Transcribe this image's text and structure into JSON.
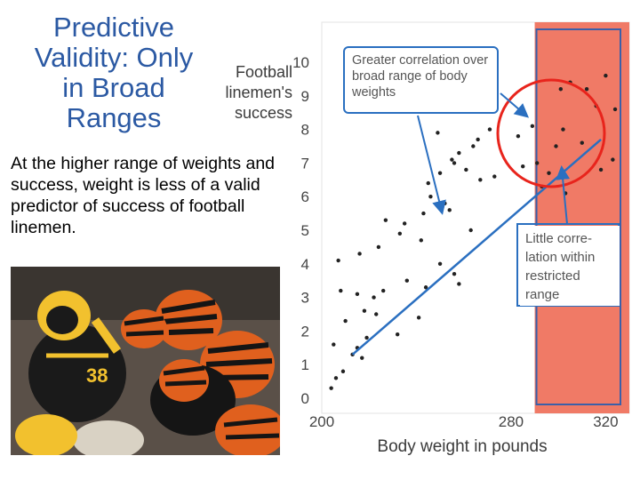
{
  "slide": {
    "title_lines": [
      "Predictive",
      "Validity: Only",
      "in Broad",
      "Ranges"
    ],
    "body": "At the higher range of weights and success, weight is less of a valid predictor of success of football linemen."
  },
  "photo": {
    "jersey_number": "38",
    "colors": {
      "steelers_yellow": "#f2c12e",
      "steelers_black": "#1a1a1a",
      "bengals_orange": "#e0601e",
      "bengals_black": "#151515"
    }
  },
  "chart_data": {
    "type": "scatter",
    "ylabel_lines": [
      "Football",
      "linemen's",
      "success"
    ],
    "xlabel": "Body weight in pounds",
    "xlim": [
      200,
      330
    ],
    "ylim": [
      0,
      10.5
    ],
    "x_ticks": [
      200,
      280,
      320
    ],
    "y_ticks": [
      0,
      1,
      2,
      3,
      4,
      5,
      6,
      7,
      8,
      9,
      10
    ],
    "grid": false,
    "highlight_band": {
      "x": [
        290,
        330
      ],
      "color": "#f07a66"
    },
    "trend_line": {
      "from": [
        213,
        1.3
      ],
      "to": [
        318,
        7.7
      ],
      "color": "#2a6fc0"
    },
    "points": [
      [
        204,
        0.3
      ],
      [
        206,
        0.6
      ],
      [
        209,
        0.8
      ],
      [
        213,
        1.3
      ],
      [
        205,
        1.6
      ],
      [
        215,
        1.5
      ],
      [
        217,
        1.2
      ],
      [
        219,
        1.8
      ],
      [
        210,
        2.3
      ],
      [
        218,
        2.6
      ],
      [
        223,
        2.5
      ],
      [
        232,
        1.9
      ],
      [
        241,
        2.4
      ],
      [
        208,
        3.2
      ],
      [
        215,
        3.1
      ],
      [
        222,
        3.0
      ],
      [
        226,
        3.2
      ],
      [
        236,
        3.5
      ],
      [
        244,
        3.3
      ],
      [
        258,
        3.4
      ],
      [
        207,
        4.1
      ],
      [
        216,
        4.3
      ],
      [
        224,
        4.5
      ],
      [
        233,
        4.9
      ],
      [
        242,
        4.7
      ],
      [
        250,
        4.0
      ],
      [
        254,
        5.6
      ],
      [
        227,
        5.3
      ],
      [
        235,
        5.2
      ],
      [
        243,
        5.5
      ],
      [
        246,
        6.0
      ],
      [
        252,
        5.8
      ],
      [
        263,
        5.0
      ],
      [
        256,
        3.7
      ],
      [
        245,
        6.4
      ],
      [
        250,
        6.7
      ],
      [
        255,
        7.1
      ],
      [
        258,
        7.3
      ],
      [
        261,
        6.8
      ],
      [
        264,
        7.5
      ],
      [
        267,
        6.5
      ],
      [
        249,
        7.9
      ],
      [
        256,
        7.0
      ],
      [
        266,
        7.7
      ],
      [
        271,
        8.0
      ],
      [
        273,
        6.6
      ],
      [
        283,
        7.8
      ],
      [
        289,
        8.1
      ],
      [
        293,
        6.3
      ],
      [
        296,
        6.7
      ],
      [
        302,
        8.0
      ],
      [
        305,
        9.4
      ],
      [
        310,
        7.6
      ],
      [
        312,
        9.2
      ],
      [
        316,
        8.7
      ],
      [
        320,
        9.6
      ],
      [
        323,
        7.1
      ],
      [
        324,
        8.6
      ],
      [
        301,
        9.2
      ],
      [
        318,
        6.8
      ],
      [
        291,
        7.0
      ],
      [
        299,
        7.5
      ],
      [
        285,
        6.9
      ],
      [
        303,
        6.1
      ]
    ]
  },
  "annotations": {
    "top_callout": "Greater correlation over broad range of body weights",
    "right_callout": "Little corre-lation within restricted range",
    "callout_color": "#2a6fc0",
    "circle_color": "#e8241c"
  }
}
